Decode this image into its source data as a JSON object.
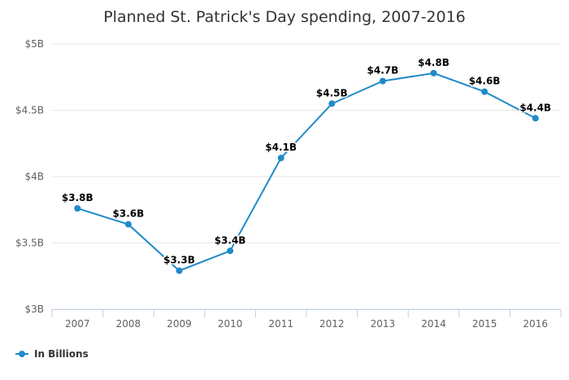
{
  "chart_data": {
    "type": "line",
    "title": "Planned St. Patrick's Day spending, 2007-2016",
    "xlabel": "",
    "ylabel": "",
    "categories": [
      "2007",
      "2008",
      "2009",
      "2010",
      "2011",
      "2012",
      "2013",
      "2014",
      "2015",
      "2016"
    ],
    "series": [
      {
        "name": "In Billions",
        "values": [
          3.76,
          3.64,
          3.29,
          3.44,
          4.14,
          4.55,
          4.72,
          4.78,
          4.64,
          4.44
        ],
        "data_labels": [
          "$3.8B",
          "$3.6B",
          "$3.3B",
          "$3.4B",
          "$4.1B",
          "$4.5B",
          "$4.7B",
          "$4.8B",
          "$4.6B",
          "$4.4B"
        ]
      }
    ],
    "ylim": [
      3,
      5
    ],
    "yticks": [
      3,
      3.5,
      4,
      4.5,
      5
    ],
    "ytick_labels": [
      "$3B",
      "$3.5B",
      "$4B",
      "$4.5B",
      "$5B"
    ],
    "grid": "horizontal",
    "legend": "bottom-left",
    "colors": {
      "series": "#1f8ac9",
      "grid": "#e6e6e6",
      "axis": "#c0d0e0"
    }
  }
}
